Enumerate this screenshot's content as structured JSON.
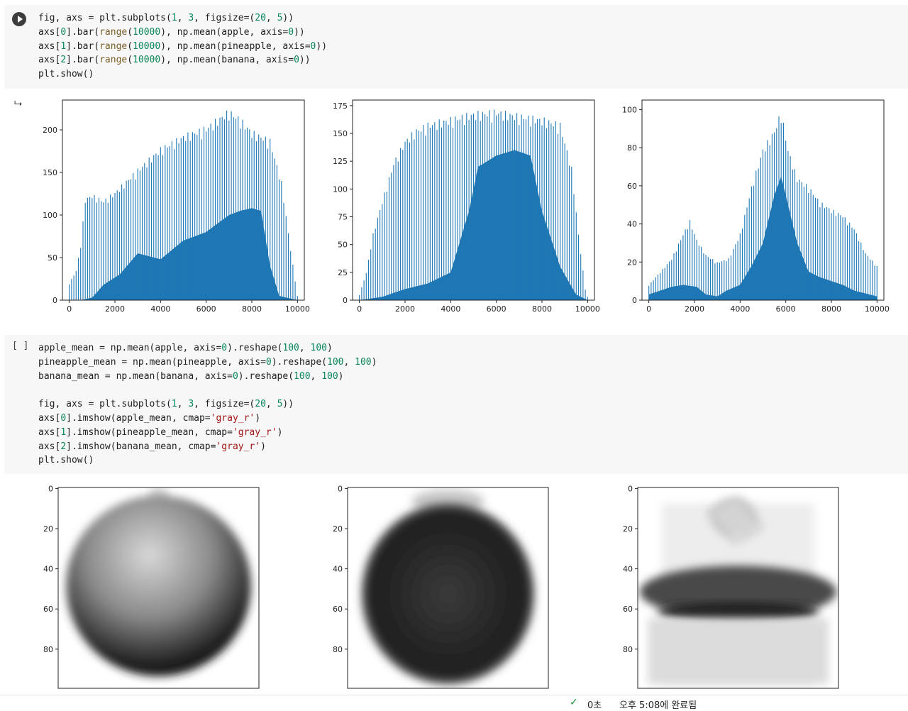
{
  "cell1": {
    "code": [
      [
        [
          "fig, axs = plt.subplots(",
          ""
        ],
        [
          "1",
          "n"
        ],
        [
          ", ",
          ""
        ],
        [
          "3",
          "n"
        ],
        [
          ", figsize=(",
          ""
        ],
        [
          "20",
          "n"
        ],
        [
          ", ",
          ""
        ],
        [
          "5",
          "n"
        ],
        [
          "))",
          ""
        ]
      ],
      [
        [
          "axs[",
          ""
        ],
        [
          "0",
          "n"
        ],
        [
          "].bar(",
          ""
        ],
        [
          "range",
          "b"
        ],
        [
          "(",
          ""
        ],
        [
          "10000",
          "n"
        ],
        [
          "), np.mean(apple, axis=",
          ""
        ],
        [
          "0",
          "n"
        ],
        [
          "))",
          ""
        ]
      ],
      [
        [
          "axs[",
          ""
        ],
        [
          "1",
          "n"
        ],
        [
          "].bar(",
          ""
        ],
        [
          "range",
          "b"
        ],
        [
          "(",
          ""
        ],
        [
          "10000",
          "n"
        ],
        [
          "), np.mean(pineapple, axis=",
          ""
        ],
        [
          "0",
          "n"
        ],
        [
          "))",
          ""
        ]
      ],
      [
        [
          "axs[",
          ""
        ],
        [
          "2",
          "n"
        ],
        [
          "].bar(",
          ""
        ],
        [
          "range",
          "b"
        ],
        [
          "(",
          ""
        ],
        [
          "10000",
          "n"
        ],
        [
          "), np.mean(banana, axis=",
          ""
        ],
        [
          "0",
          "n"
        ],
        [
          "))",
          ""
        ]
      ],
      [
        [
          "plt.show()",
          ""
        ]
      ]
    ]
  },
  "cell2": {
    "bracket": "[ ]",
    "code": [
      [
        [
          "apple_mean = np.mean(apple, axis=",
          ""
        ],
        [
          "0",
          "n"
        ],
        [
          ").reshape(",
          ""
        ],
        [
          "100",
          "n"
        ],
        [
          ", ",
          ""
        ],
        [
          "100",
          "n"
        ],
        [
          ")",
          ""
        ]
      ],
      [
        [
          "pineapple_mean = np.mean(pineapple, axis=",
          ""
        ],
        [
          "0",
          "n"
        ],
        [
          ").reshape(",
          ""
        ],
        [
          "100",
          "n"
        ],
        [
          ", ",
          ""
        ],
        [
          "100",
          "n"
        ],
        [
          ")",
          ""
        ]
      ],
      [
        [
          "banana_mean = np.mean(banana, axis=",
          ""
        ],
        [
          "0",
          "n"
        ],
        [
          ").reshape(",
          ""
        ],
        [
          "100",
          "n"
        ],
        [
          ", ",
          ""
        ],
        [
          "100",
          "n"
        ],
        [
          ")",
          ""
        ]
      ],
      [
        [
          "",
          ""
        ]
      ],
      [
        [
          "fig, axs = plt.subplots(",
          ""
        ],
        [
          "1",
          "n"
        ],
        [
          ", ",
          ""
        ],
        [
          "3",
          "n"
        ],
        [
          ", figsize=(",
          ""
        ],
        [
          "20",
          "n"
        ],
        [
          ", ",
          ""
        ],
        [
          "5",
          "n"
        ],
        [
          "))",
          ""
        ]
      ],
      [
        [
          "axs[",
          ""
        ],
        [
          "0",
          "n"
        ],
        [
          "].imshow(apple_mean, cmap=",
          ""
        ],
        [
          "'gray_r'",
          "s"
        ],
        [
          ")",
          ""
        ]
      ],
      [
        [
          "axs[",
          ""
        ],
        [
          "1",
          "n"
        ],
        [
          "].imshow(pineapple_mean, cmap=",
          ""
        ],
        [
          "'gray_r'",
          "s"
        ],
        [
          ")",
          ""
        ]
      ],
      [
        [
          "axs[",
          ""
        ],
        [
          "2",
          "n"
        ],
        [
          "].imshow(banana_mean, cmap=",
          ""
        ],
        [
          "'gray_r'",
          "s"
        ],
        [
          ")",
          ""
        ]
      ],
      [
        [
          "plt.show()",
          ""
        ]
      ]
    ]
  },
  "output_icon": "⮡",
  "chart_data": [
    {
      "type": "bar",
      "title": "",
      "xlim": [
        -300,
        10300
      ],
      "ylim": [
        0,
        235
      ],
      "xticks": [
        0,
        2000,
        4000,
        6000,
        8000,
        10000
      ],
      "yticks": [
        0,
        50,
        100,
        150,
        200
      ],
      "bar_color": "#1f77b4",
      "profile": [
        [
          0,
          20
        ],
        [
          300,
          35
        ],
        [
          500,
          65
        ],
        [
          700,
          120
        ],
        [
          1000,
          125
        ],
        [
          1500,
          118
        ],
        [
          2000,
          128
        ],
        [
          3000,
          155
        ],
        [
          4000,
          180
        ],
        [
          5000,
          195
        ],
        [
          6000,
          205
        ],
        [
          7000,
          225
        ],
        [
          7500,
          215
        ],
        [
          8000,
          200
        ],
        [
          8800,
          190
        ],
        [
          9300,
          140
        ],
        [
          9700,
          60
        ],
        [
          10000,
          5
        ]
      ],
      "fill_profile": [
        [
          0,
          0
        ],
        [
          500,
          0
        ],
        [
          1000,
          3
        ],
        [
          1500,
          18
        ],
        [
          2200,
          30
        ],
        [
          3000,
          55
        ],
        [
          4000,
          48
        ],
        [
          5000,
          70
        ],
        [
          6000,
          80
        ],
        [
          7000,
          100
        ],
        [
          7500,
          105
        ],
        [
          8000,
          108
        ],
        [
          8400,
          105
        ],
        [
          8800,
          40
        ],
        [
          9200,
          5
        ],
        [
          10000,
          0
        ]
      ]
    },
    {
      "type": "bar",
      "title": "",
      "xlim": [
        -300,
        10300
      ],
      "ylim": [
        0,
        180
      ],
      "xticks": [
        0,
        2000,
        4000,
        6000,
        8000,
        10000
      ],
      "yticks": [
        0,
        25,
        50,
        75,
        100,
        125,
        150,
        175
      ],
      "bar_color": "#1f77b4",
      "profile": [
        [
          0,
          5
        ],
        [
          300,
          25
        ],
        [
          600,
          60
        ],
        [
          1000,
          90
        ],
        [
          1500,
          125
        ],
        [
          2000,
          145
        ],
        [
          2500,
          155
        ],
        [
          3000,
          160
        ],
        [
          4000,
          165
        ],
        [
          5000,
          170
        ],
        [
          6000,
          172
        ],
        [
          7000,
          168
        ],
        [
          8000,
          165
        ],
        [
          8800,
          160
        ],
        [
          9300,
          120
        ],
        [
          9600,
          60
        ],
        [
          9900,
          10
        ],
        [
          10000,
          3
        ]
      ],
      "fill_profile": [
        [
          0,
          0
        ],
        [
          1000,
          3
        ],
        [
          2000,
          10
        ],
        [
          3000,
          15
        ],
        [
          4000,
          25
        ],
        [
          4800,
          80
        ],
        [
          5200,
          120
        ],
        [
          6000,
          130
        ],
        [
          6800,
          135
        ],
        [
          7500,
          130
        ],
        [
          8000,
          80
        ],
        [
          8800,
          30
        ],
        [
          9500,
          5
        ],
        [
          10000,
          0
        ]
      ]
    },
    {
      "type": "bar",
      "title": "",
      "xlim": [
        -300,
        10300
      ],
      "ylim": [
        0,
        105
      ],
      "xticks": [
        0,
        2000,
        4000,
        6000,
        8000,
        10000
      ],
      "yticks": [
        0,
        20,
        40,
        60,
        80,
        100
      ],
      "bar_color": "#1f77b4",
      "profile": [
        [
          0,
          8
        ],
        [
          500,
          15
        ],
        [
          1000,
          22
        ],
        [
          1500,
          35
        ],
        [
          1800,
          42
        ],
        [
          2100,
          32
        ],
        [
          2500,
          24
        ],
        [
          3000,
          20
        ],
        [
          3500,
          22
        ],
        [
          4000,
          35
        ],
        [
          4500,
          60
        ],
        [
          5000,
          80
        ],
        [
          5500,
          90
        ],
        [
          5800,
          100
        ],
        [
          6100,
          80
        ],
        [
          6500,
          65
        ],
        [
          7000,
          60
        ],
        [
          7500,
          52
        ],
        [
          8000,
          48
        ],
        [
          8500,
          45
        ],
        [
          9000,
          38
        ],
        [
          9500,
          25
        ],
        [
          10000,
          18
        ]
      ],
      "fill_profile": [
        [
          0,
          3
        ],
        [
          500,
          5
        ],
        [
          1000,
          7
        ],
        [
          1500,
          8
        ],
        [
          2100,
          7
        ],
        [
          2500,
          3
        ],
        [
          3000,
          2
        ],
        [
          3400,
          5
        ],
        [
          4000,
          8
        ],
        [
          4500,
          18
        ],
        [
          5000,
          30
        ],
        [
          5500,
          55
        ],
        [
          5800,
          65
        ],
        [
          6100,
          50
        ],
        [
          6500,
          30
        ],
        [
          7000,
          15
        ],
        [
          7500,
          12
        ],
        [
          8000,
          10
        ],
        [
          8500,
          8
        ],
        [
          9000,
          5
        ],
        [
          10000,
          2
        ]
      ]
    },
    {
      "type": "heatmap",
      "title": "",
      "image": "apple_mean",
      "xlim": [
        0,
        100
      ],
      "ylim": [
        0,
        100
      ],
      "yticks": [
        0,
        20,
        40,
        60,
        80
      ]
    },
    {
      "type": "heatmap",
      "title": "",
      "image": "pineapple_mean",
      "xlim": [
        0,
        100
      ],
      "ylim": [
        0,
        100
      ],
      "yticks": [
        0,
        20,
        40,
        60,
        80
      ]
    },
    {
      "type": "heatmap",
      "title": "",
      "image": "banana_mean",
      "xlim": [
        0,
        100
      ],
      "ylim": [
        0,
        100
      ],
      "yticks": [
        0,
        20,
        40,
        60,
        80
      ]
    }
  ],
  "status_bar": {
    "check_icon": "✓",
    "duration": "0초",
    "completed": "오후 5:08에 완료됨"
  }
}
